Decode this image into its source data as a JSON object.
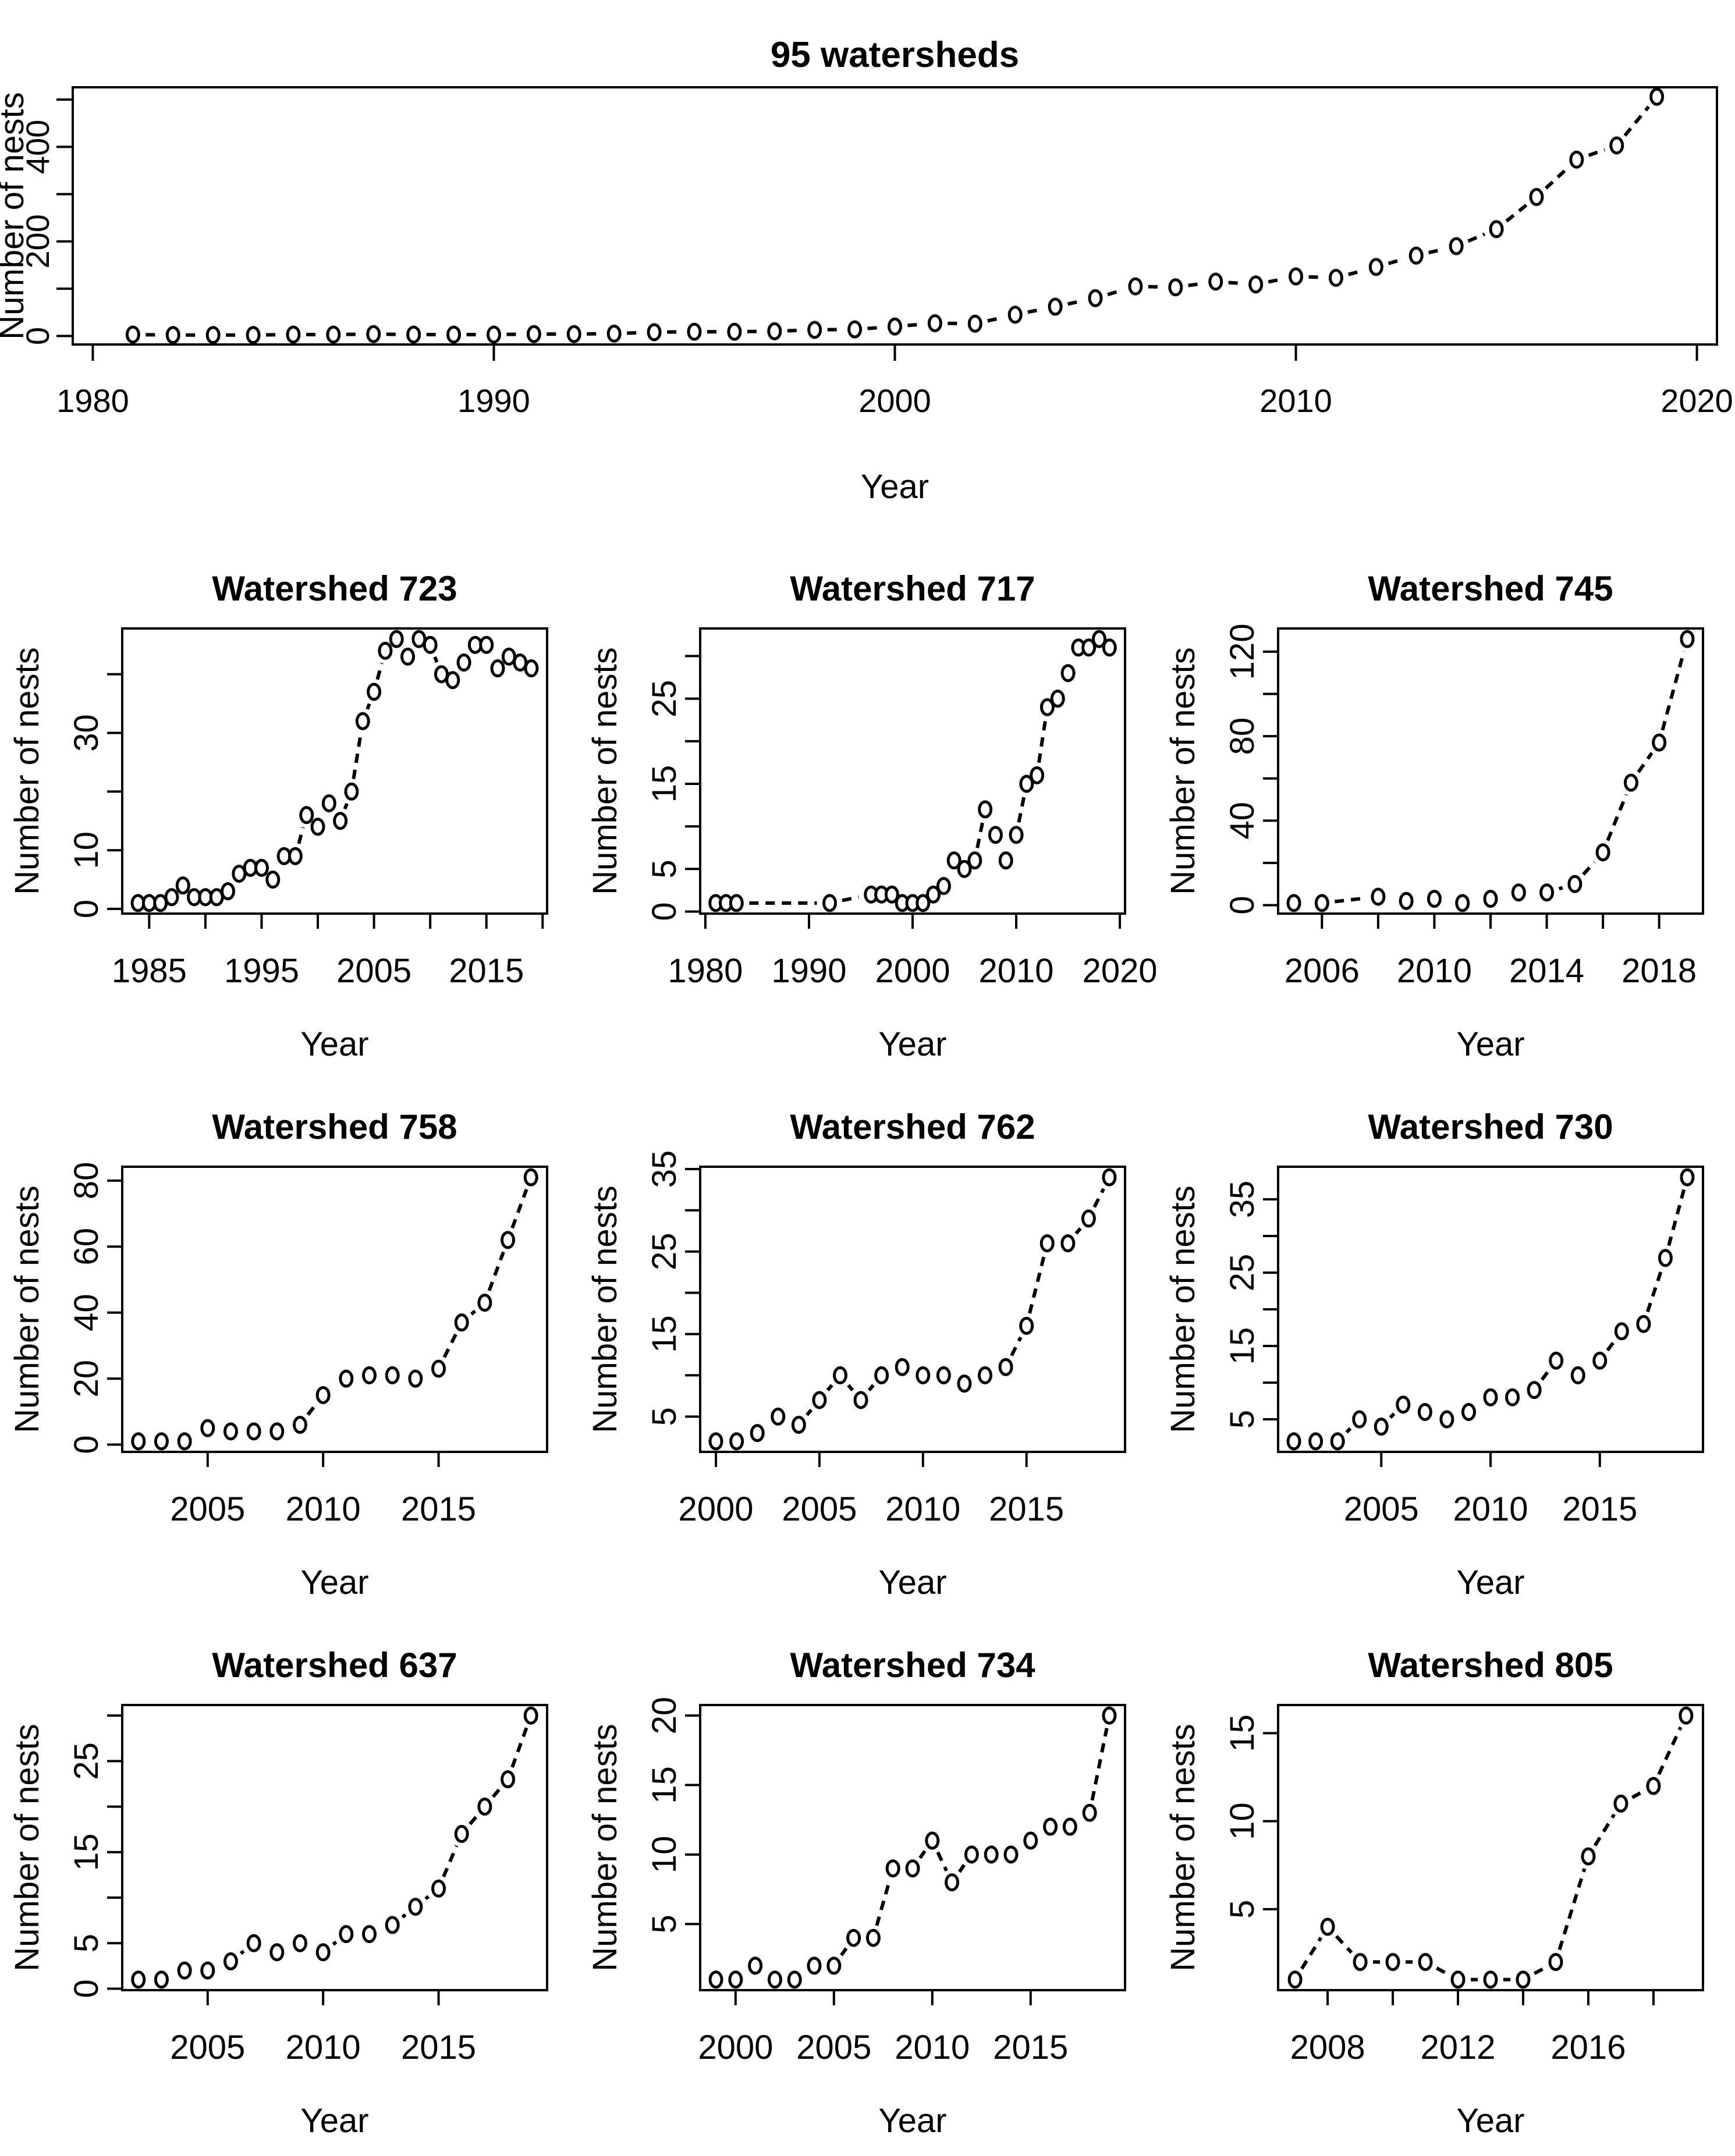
{
  "page": {
    "title": "95 watersheds",
    "background": "#ffffff",
    "foreground": "#000000",
    "marker_style": "open-circle",
    "line_style": "dashed"
  },
  "chart_data": [
    {
      "id": "overall",
      "type": "scatter",
      "title": "95 watersheds",
      "xlabel": "Year",
      "ylabel": "Number of nests",
      "span": "full",
      "grid": false,
      "legend": "none",
      "x": [
        1981,
        1982,
        1983,
        1984,
        1985,
        1986,
        1987,
        1988,
        1989,
        1990,
        1991,
        1992,
        1993,
        1994,
        1995,
        1996,
        1997,
        1998,
        1999,
        2000,
        2001,
        2002,
        2003,
        2004,
        2005,
        2006,
        2007,
        2008,
        2009,
        2010,
        2011,
        2012,
        2013,
        2014,
        2015,
        2016,
        2017,
        2018,
        2019
      ],
      "y": [
        3,
        2,
        2,
        2,
        3,
        3,
        4,
        3,
        3,
        3,
        4,
        4,
        5,
        8,
        9,
        9,
        10,
        13,
        14,
        20,
        27,
        26,
        45,
        62,
        80,
        105,
        103,
        115,
        109,
        126,
        123,
        146,
        170,
        190,
        226,
        294,
        373,
        403,
        506
      ],
      "xlim": [
        1979.5,
        2020.5
      ],
      "ylim": [
        -18,
        526
      ],
      "xticks": [
        [
          1980,
          "1980"
        ],
        [
          1990,
          "1990"
        ],
        [
          2000,
          "2000"
        ],
        [
          2010,
          "2010"
        ],
        [
          2020,
          "2020"
        ]
      ],
      "yticks": [
        [
          0,
          "0"
        ],
        [
          100,
          ""
        ],
        [
          200,
          "200"
        ],
        [
          300,
          ""
        ],
        [
          400,
          "400"
        ],
        [
          500,
          ""
        ]
      ]
    },
    {
      "id": "w723",
      "type": "scatter",
      "title": "Watershed 723",
      "xlabel": "Year",
      "ylabel": "Number of nests",
      "span": "cell",
      "grid": false,
      "legend": "none",
      "x": [
        1984,
        1985,
        1986,
        1987,
        1988,
        1989,
        1990,
        1991,
        1992,
        1993,
        1994,
        1995,
        1996,
        1997,
        1998,
        1999,
        2000,
        2001,
        2002,
        2003,
        2004,
        2005,
        2006,
        2007,
        2008,
        2009,
        2010,
        2011,
        2012,
        2013,
        2014,
        2015,
        2016,
        2017,
        2018,
        2019
      ],
      "y": [
        1,
        1,
        1,
        2,
        4,
        2,
        2,
        2,
        3,
        6,
        7,
        7,
        5,
        9,
        9,
        16,
        14,
        18,
        15,
        20,
        32,
        37,
        44,
        46,
        43,
        46,
        45,
        40,
        39,
        42,
        45,
        45,
        41,
        43,
        42,
        41
      ],
      "xlim": [
        1982.6,
        2020.4
      ],
      "ylim": [
        -0.8,
        47.8
      ],
      "xticks": [
        [
          1985,
          "1985"
        ],
        [
          1990,
          ""
        ],
        [
          1995,
          "1995"
        ],
        [
          2000,
          ""
        ],
        [
          2005,
          "2005"
        ],
        [
          2010,
          ""
        ],
        [
          2015,
          "2015"
        ],
        [
          2020,
          ""
        ]
      ],
      "yticks": [
        [
          0,
          "0"
        ],
        [
          10,
          "10"
        ],
        [
          20,
          ""
        ],
        [
          30,
          "30"
        ],
        [
          40,
          ""
        ]
      ]
    },
    {
      "id": "w717",
      "type": "scatter",
      "title": "Watershed 717",
      "xlabel": "Year",
      "ylabel": "Number of nests",
      "span": "cell",
      "grid": false,
      "legend": "none",
      "x": [
        1981,
        1982,
        1983,
        1992,
        1996,
        1997,
        1998,
        1999,
        2000,
        2001,
        2002,
        2003,
        2004,
        2005,
        2006,
        2007,
        2008,
        2009,
        2010,
        2011,
        2012,
        2013,
        2014,
        2015,
        2016,
        2017,
        2018,
        2019
      ],
      "y": [
        1,
        1,
        1,
        1,
        2,
        2,
        2,
        1,
        1,
        1,
        2,
        3,
        6,
        5,
        6,
        12,
        9,
        6,
        9,
        15,
        16,
        24,
        25,
        28,
        31,
        31,
        32,
        31
      ],
      "xlim": [
        1979.5,
        2020.5
      ],
      "ylim": [
        -0.24,
        33.24
      ],
      "xticks": [
        [
          1980,
          "1980"
        ],
        [
          1990,
          "1990"
        ],
        [
          2000,
          "2000"
        ],
        [
          2010,
          "2010"
        ],
        [
          2020,
          "2020"
        ]
      ],
      "yticks": [
        [
          0,
          "0"
        ],
        [
          5,
          "5"
        ],
        [
          10,
          ""
        ],
        [
          15,
          "15"
        ],
        [
          20,
          ""
        ],
        [
          25,
          "25"
        ],
        [
          30,
          ""
        ]
      ]
    },
    {
      "id": "w745",
      "type": "scatter",
      "title": "Watershed 745",
      "xlabel": "Year",
      "ylabel": "Number of nests",
      "span": "cell",
      "grid": false,
      "legend": "none",
      "x": [
        2005,
        2006,
        2008,
        2009,
        2010,
        2011,
        2012,
        2013,
        2014,
        2015,
        2016,
        2017,
        2018,
        2019
      ],
      "y": [
        1,
        1,
        4,
        2,
        3,
        1,
        3,
        6,
        6,
        10,
        25,
        58,
        77,
        126
      ],
      "xlim": [
        2004.44,
        2019.56
      ],
      "ylim": [
        -4,
        131
      ],
      "xticks": [
        [
          2006,
          "2006"
        ],
        [
          2008,
          ""
        ],
        [
          2010,
          "2010"
        ],
        [
          2012,
          ""
        ],
        [
          2014,
          "2014"
        ],
        [
          2016,
          ""
        ],
        [
          2018,
          "2018"
        ]
      ],
      "yticks": [
        [
          0,
          "0"
        ],
        [
          20,
          ""
        ],
        [
          40,
          "40"
        ],
        [
          60,
          ""
        ],
        [
          80,
          "80"
        ],
        [
          100,
          ""
        ],
        [
          120,
          "120"
        ]
      ]
    },
    {
      "id": "w758",
      "type": "scatter",
      "title": "Watershed 758",
      "xlabel": "Year",
      "ylabel": "Number of nests",
      "span": "cell",
      "grid": false,
      "legend": "none",
      "x": [
        2002,
        2003,
        2004,
        2005,
        2006,
        2007,
        2008,
        2009,
        2010,
        2011,
        2012,
        2013,
        2014,
        2015,
        2016,
        2017,
        2018,
        2019
      ],
      "y": [
        1,
        1,
        1,
        5,
        4,
        4,
        4,
        6,
        15,
        20,
        21,
        21,
        20,
        23,
        37,
        43,
        62,
        81
      ],
      "xlim": [
        2001.3,
        2019.7
      ],
      "ylim": [
        -2.2,
        84.2
      ],
      "xticks": [
        [
          2005,
          "2005"
        ],
        [
          2010,
          "2010"
        ],
        [
          2015,
          "2015"
        ]
      ],
      "yticks": [
        [
          0,
          "0"
        ],
        [
          20,
          "20"
        ],
        [
          40,
          "40"
        ],
        [
          60,
          "60"
        ],
        [
          80,
          "80"
        ]
      ]
    },
    {
      "id": "w762",
      "type": "scatter",
      "title": "Watershed 762",
      "xlabel": "Year",
      "ylabel": "Number of nests",
      "span": "cell",
      "grid": false,
      "legend": "none",
      "x": [
        2000,
        2001,
        2002,
        2003,
        2004,
        2005,
        2006,
        2007,
        2008,
        2009,
        2010,
        2011,
        2012,
        2013,
        2014,
        2015,
        2016,
        2017,
        2018,
        2019
      ],
      "y": [
        2,
        2,
        3,
        5,
        4,
        7,
        10,
        7,
        10,
        11,
        10,
        10,
        9,
        10,
        11,
        16,
        26,
        26,
        29,
        34
      ],
      "xlim": [
        1999.24,
        2019.76
      ],
      "ylim": [
        0.72,
        35.28
      ],
      "xticks": [
        [
          2000,
          "2000"
        ],
        [
          2005,
          "2005"
        ],
        [
          2010,
          "2010"
        ],
        [
          2015,
          "2015"
        ]
      ],
      "yticks": [
        [
          5,
          "5"
        ],
        [
          10,
          ""
        ],
        [
          15,
          "15"
        ],
        [
          20,
          ""
        ],
        [
          25,
          "25"
        ],
        [
          30,
          ""
        ],
        [
          35,
          "35"
        ]
      ]
    },
    {
      "id": "w730",
      "type": "scatter",
      "title": "Watershed 730",
      "xlabel": "Year",
      "ylabel": "Number of nests",
      "span": "cell",
      "grid": false,
      "legend": "none",
      "x": [
        2001,
        2002,
        2003,
        2004,
        2005,
        2006,
        2007,
        2008,
        2009,
        2010,
        2011,
        2012,
        2013,
        2014,
        2015,
        2016,
        2017,
        2018,
        2019
      ],
      "y": [
        2,
        2,
        2,
        5,
        4,
        7,
        6,
        5,
        6,
        8,
        8,
        9,
        13,
        11,
        13,
        17,
        18,
        27,
        38
      ],
      "xlim": [
        2000.28,
        2019.72
      ],
      "ylim": [
        0.56,
        39.44
      ],
      "xticks": [
        [
          2005,
          "2005"
        ],
        [
          2010,
          "2010"
        ],
        [
          2015,
          "2015"
        ]
      ],
      "yticks": [
        [
          5,
          "5"
        ],
        [
          10,
          ""
        ],
        [
          15,
          "15"
        ],
        [
          20,
          ""
        ],
        [
          25,
          "25"
        ],
        [
          30,
          ""
        ],
        [
          35,
          "35"
        ]
      ]
    },
    {
      "id": "w637",
      "type": "scatter",
      "title": "Watershed 637",
      "xlabel": "Year",
      "ylabel": "Number of nests",
      "span": "cell",
      "grid": false,
      "legend": "none",
      "x": [
        2002,
        2003,
        2004,
        2005,
        2006,
        2007,
        2008,
        2009,
        2010,
        2011,
        2012,
        2013,
        2014,
        2015,
        2016,
        2017,
        2018,
        2019
      ],
      "y": [
        1,
        1,
        2,
        2,
        3,
        5,
        4,
        5,
        4,
        6,
        6,
        7,
        9,
        11,
        17,
        20,
        23,
        30
      ],
      "xlim": [
        2001.3,
        2019.7
      ],
      "ylim": [
        -0.16,
        31.16
      ],
      "xticks": [
        [
          2005,
          "2005"
        ],
        [
          2010,
          "2010"
        ],
        [
          2015,
          "2015"
        ]
      ],
      "yticks": [
        [
          0,
          "0"
        ],
        [
          5,
          "5"
        ],
        [
          10,
          ""
        ],
        [
          15,
          "15"
        ],
        [
          20,
          ""
        ],
        [
          25,
          "25"
        ],
        [
          30,
          ""
        ]
      ]
    },
    {
      "id": "w734",
      "type": "scatter",
      "title": "Watershed 734",
      "xlabel": "Year",
      "ylabel": "Number of nests",
      "span": "cell",
      "grid": false,
      "legend": "none",
      "x": [
        1999,
        2000,
        2001,
        2002,
        2003,
        2004,
        2005,
        2006,
        2007,
        2008,
        2009,
        2010,
        2011,
        2012,
        2013,
        2014,
        2015,
        2016,
        2017,
        2018,
        2019
      ],
      "y": [
        1,
        1,
        2,
        1,
        1,
        2,
        2,
        4,
        4,
        9,
        9,
        11,
        8,
        10,
        10,
        10,
        11,
        12,
        12,
        13,
        20
      ],
      "xlim": [
        1998.2,
        2019.8
      ],
      "ylim": [
        0.24,
        20.76
      ],
      "xticks": [
        [
          2000,
          "2000"
        ],
        [
          2005,
          "2005"
        ],
        [
          2010,
          "2010"
        ],
        [
          2015,
          "2015"
        ]
      ],
      "yticks": [
        [
          5,
          "5"
        ],
        [
          10,
          "10"
        ],
        [
          15,
          "15"
        ],
        [
          20,
          "20"
        ]
      ]
    },
    {
      "id": "w805",
      "type": "scatter",
      "title": "Watershed 805",
      "xlabel": "Year",
      "ylabel": "Number of nests",
      "span": "cell",
      "grid": false,
      "legend": "none",
      "x": [
        2007,
        2008,
        2009,
        2010,
        2011,
        2012,
        2013,
        2014,
        2015,
        2016,
        2017,
        2018,
        2019
      ],
      "y": [
        1,
        4,
        2,
        2,
        2,
        1,
        1,
        1,
        2,
        8,
        11,
        12,
        16
      ],
      "xlim": [
        2006.48,
        2019.52
      ],
      "ylim": [
        0.4,
        16.6
      ],
      "xticks": [
        [
          2008,
          "2008"
        ],
        [
          2010,
          ""
        ],
        [
          2012,
          "2012"
        ],
        [
          2014,
          ""
        ],
        [
          2016,
          "2016"
        ],
        [
          2018,
          ""
        ]
      ],
      "yticks": [
        [
          5,
          "5"
        ],
        [
          10,
          "10"
        ],
        [
          15,
          "15"
        ]
      ]
    }
  ]
}
